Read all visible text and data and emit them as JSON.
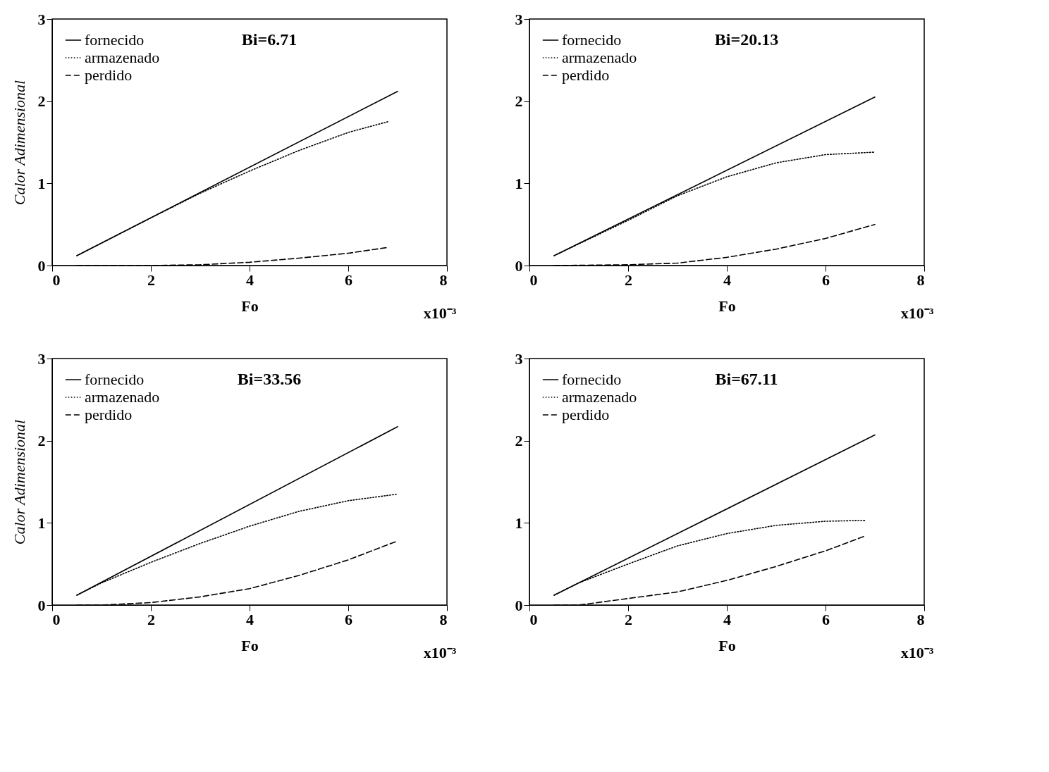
{
  "chart_data": [
    {
      "type": "line",
      "xlabel": "Fo",
      "ylabel": "Calor Adimensional",
      "annotations": [
        "Bi=6.71",
        "x10⁻³"
      ],
      "xlim": [
        0,
        8
      ],
      "ylim": [
        0,
        3
      ],
      "xticks": [
        0,
        2,
        4,
        6,
        8
      ],
      "yticks": [
        0,
        1,
        2,
        3
      ],
      "grid": false,
      "legend": "top left",
      "series": [
        {
          "name": "fornecido",
          "color": "#000000",
          "line_style": "solid",
          "x": [
            0.5,
            7
          ],
          "values": [
            0.12,
            2.12
          ]
        },
        {
          "name": "armazenado",
          "color": "#000000",
          "line_style": "dotted",
          "x": [
            0.5,
            2,
            3,
            4,
            5,
            6,
            6.8
          ],
          "values": [
            0.12,
            0.58,
            0.88,
            1.15,
            1.4,
            1.62,
            1.75
          ]
        },
        {
          "name": "perdido",
          "color": "#000000",
          "line_style": "dashed",
          "x": [
            0.5,
            2,
            3,
            4,
            5,
            6,
            6.8
          ],
          "values": [
            0,
            0,
            0.01,
            0.04,
            0.09,
            0.15,
            0.22
          ]
        }
      ]
    },
    {
      "type": "line",
      "xlabel": "Fo",
      "annotations": [
        "Bi=20.13",
        "x10⁻³"
      ],
      "xlim": [
        0,
        8
      ],
      "ylim": [
        0,
        3
      ],
      "xticks": [
        0,
        2,
        4,
        6,
        8
      ],
      "yticks": [
        0,
        1,
        2,
        3
      ],
      "grid": false,
      "legend": "top left",
      "series": [
        {
          "name": "fornecido",
          "color": "#000000",
          "line_style": "solid",
          "x": [
            0.5,
            7
          ],
          "values": [
            0.12,
            2.05
          ]
        },
        {
          "name": "armazenado",
          "color": "#000000",
          "line_style": "dotted",
          "x": [
            0.5,
            2,
            3,
            4,
            5,
            6,
            7
          ],
          "values": [
            0.12,
            0.55,
            0.85,
            1.08,
            1.25,
            1.35,
            1.38
          ]
        },
        {
          "name": "perdido",
          "color": "#000000",
          "line_style": "dashed",
          "x": [
            0.5,
            2,
            3,
            4,
            5,
            6,
            7
          ],
          "values": [
            0,
            0.01,
            0.03,
            0.1,
            0.2,
            0.33,
            0.5
          ]
        }
      ]
    },
    {
      "type": "line",
      "xlabel": "Fo",
      "ylabel": "Calor Adimensional",
      "annotations": [
        "Bi=33.56",
        "x10⁻³"
      ],
      "xlim": [
        0,
        8
      ],
      "ylim": [
        0,
        3
      ],
      "xticks": [
        0,
        2,
        4,
        6,
        8
      ],
      "yticks": [
        0,
        1,
        2,
        3
      ],
      "grid": false,
      "legend": "top left",
      "series": [
        {
          "name": "fornecido",
          "color": "#000000",
          "line_style": "solid",
          "x": [
            0.5,
            7
          ],
          "values": [
            0.12,
            2.17
          ]
        },
        {
          "name": "armazenado",
          "color": "#000000",
          "line_style": "dotted",
          "x": [
            0.5,
            1,
            2,
            3,
            4,
            5,
            6,
            7
          ],
          "values": [
            0.12,
            0.27,
            0.52,
            0.75,
            0.96,
            1.14,
            1.27,
            1.35
          ]
        },
        {
          "name": "perdido",
          "color": "#000000",
          "line_style": "dashed",
          "x": [
            0.5,
            1,
            2,
            3,
            4,
            5,
            6,
            7
          ],
          "values": [
            0,
            0,
            0.03,
            0.1,
            0.2,
            0.36,
            0.55,
            0.78
          ]
        }
      ]
    },
    {
      "type": "line",
      "xlabel": "Fo",
      "annotations": [
        "Bi=67.11",
        "x10⁻³"
      ],
      "xlim": [
        0,
        8
      ],
      "ylim": [
        0,
        3
      ],
      "xticks": [
        0,
        2,
        4,
        6,
        8
      ],
      "yticks": [
        0,
        1,
        2,
        3
      ],
      "grid": false,
      "legend": "top left",
      "series": [
        {
          "name": "fornecido",
          "color": "#000000",
          "line_style": "solid",
          "x": [
            0.5,
            7
          ],
          "values": [
            0.12,
            2.07
          ]
        },
        {
          "name": "armazenado",
          "color": "#000000",
          "line_style": "dotted",
          "x": [
            0.5,
            1,
            2,
            3,
            4,
            5,
            6,
            6.8
          ],
          "values": [
            0.12,
            0.27,
            0.5,
            0.72,
            0.87,
            0.97,
            1.02,
            1.03
          ]
        },
        {
          "name": "perdido",
          "color": "#000000",
          "line_style": "dashed",
          "x": [
            0.5,
            1,
            2,
            3,
            4,
            5,
            6,
            6.8
          ],
          "values": [
            0,
            0,
            0.08,
            0.16,
            0.3,
            0.47,
            0.66,
            0.84
          ]
        }
      ]
    }
  ]
}
